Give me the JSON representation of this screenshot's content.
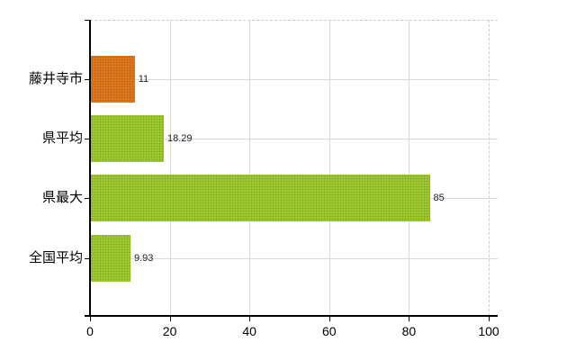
{
  "chart_data": {
    "type": "bar",
    "orientation": "horizontal",
    "title": "",
    "xlabel": "",
    "ylabel": "",
    "categories": [
      "藤井寺市",
      "県平均",
      "県最大",
      "全国平均"
    ],
    "values": [
      11,
      18.29,
      85,
      9.93
    ],
    "value_labels": [
      "11",
      "18.29",
      "85",
      "9.93"
    ],
    "bar_colors": [
      "#e0771d",
      "#9ecb2e",
      "#9ecb2e",
      "#9ecb2e"
    ],
    "x_ticks": [
      0,
      20,
      40,
      60,
      80,
      100
    ],
    "x_tick_labels": [
      "0",
      "20",
      "40",
      "60",
      "80",
      "100"
    ],
    "xlim": [
      0,
      100
    ],
    "grid": true,
    "legend": false
  },
  "colors": {
    "highlight_bar": "#e0771d",
    "default_bar": "#9ecb2e",
    "axis": "#000000",
    "gridline": "#d9d9d9",
    "label_text": "#000000",
    "value_text": "#1c1c28",
    "background": "#ffffff"
  }
}
